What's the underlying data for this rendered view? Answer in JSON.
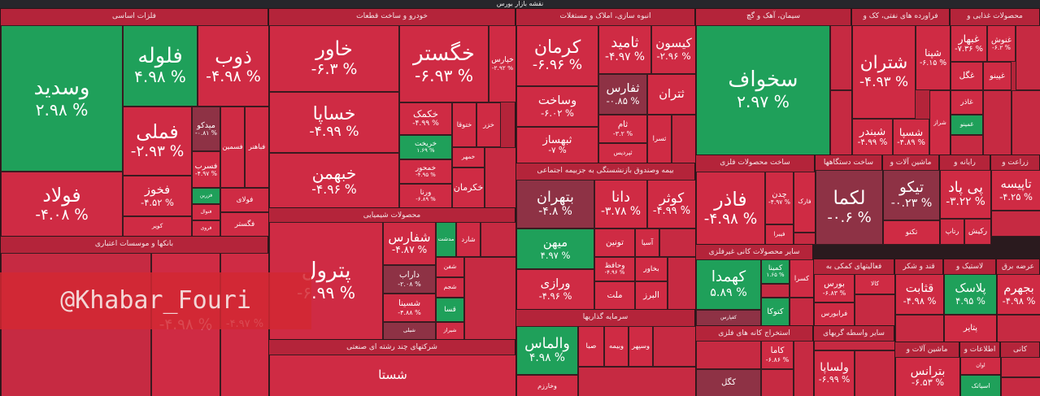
{
  "header": {
    "title": "نقشه بازار بورس"
  },
  "watermark": "@Khabar_Fouri",
  "sectors": [
    {
      "name": "فلزات اساسی",
      "tiles": [
        {
          "name": "وسدید",
          "change": "۲.۹۸ %",
          "color": "#1fa05a"
        },
        {
          "name": "فولاد",
          "change": "-۴.۰۸ %",
          "color": "#cf2b44"
        },
        {
          "name": "فلوله",
          "change": "۴.۹۸ %",
          "color": "#1fa05a"
        },
        {
          "name": "ذوب",
          "change": "-۴.۹۸ %",
          "color": "#cf2b44"
        },
        {
          "name": "فملی",
          "change": "-۲.۹۳ %",
          "color": "#cf2b44"
        },
        {
          "name": "فخوز",
          "change": "-۴.۵۲ %",
          "color": "#cf2b44"
        },
        {
          "name": "کویر",
          "color": "#cf2b44"
        },
        {
          "name": "میدکو",
          "change": "-۰.۸۱ %",
          "color": "#8e3245"
        },
        {
          "name": "فسرب",
          "change": "-۴.۹۷ %",
          "color": "#cf2b44"
        },
        {
          "name": "فزرین",
          "color": "#1fa05a"
        },
        {
          "name": "فنوال",
          "color": "#cf2b44"
        },
        {
          "name": "فروی",
          "color": "#cf2b44"
        },
        {
          "name": "فسمین",
          "color": "#cf2b44"
        },
        {
          "name": "فباهنر",
          "color": "#cf2b44"
        },
        {
          "name": "فولای",
          "color": "#cf2b44"
        },
        {
          "name": "فگستر",
          "color": "#cf2b44"
        }
      ]
    },
    {
      "name": "بانکها و موسسات اعتباری",
      "tiles": [
        {
          "change": "-۴.۹۸ %",
          "color": "#cf2b44"
        },
        {
          "change": "-۴.۹۷ %",
          "color": "#cf2b44"
        }
      ]
    },
    {
      "name": "خودرو و ساخت قطعات",
      "tiles": [
        {
          "name": "خاور",
          "change": "-۶.۳ %",
          "color": "#cf2b44"
        },
        {
          "name": "خساپا",
          "change": "-۴.۹۹ %",
          "color": "#cf2b44"
        },
        {
          "name": "خبهمن",
          "change": "-۴.۹۶ %",
          "color": "#cf2b44"
        },
        {
          "name": "خگستر",
          "change": "-۶.۹۳ %",
          "color": "#cf2b44"
        },
        {
          "name": "خپارس",
          "change": "-۲.۹۲ %",
          "color": "#cf2b44"
        },
        {
          "name": "خکمک",
          "change": "-۴.۹۹ %",
          "color": "#cf2b44"
        },
        {
          "name": "خریخت",
          "change": "۱.۶۹ %",
          "color": "#1fa05a"
        },
        {
          "name": "خمحور",
          "change": "-۴.۹۵ %",
          "color": "#cf2b44"
        },
        {
          "name": "ورنا",
          "change": "-۶.۸۹ %",
          "color": "#cf2b44"
        },
        {
          "name": "ختوقا",
          "color": "#cf2b44"
        },
        {
          "name": "خزر",
          "color": "#cf2b44"
        },
        {
          "name": "خمهر",
          "color": "#cf2b44"
        },
        {
          "name": "خکرمان",
          "color": "#cf2b44"
        }
      ]
    },
    {
      "name": "محصولات شیمیایی",
      "tiles": [
        {
          "name": "پترول",
          "change": "-۶.۹۹ %",
          "color": "#cf2b44"
        },
        {
          "name": "شفارس",
          "change": "-۴.۸۷ %",
          "color": "#cf2b44"
        },
        {
          "name": "مدشت",
          "color": "#1fa05a"
        },
        {
          "name": "شارد",
          "color": "#cf2b44"
        },
        {
          "name": "داراب",
          "change": "-۲.۰۸ %",
          "color": "#8e3245"
        },
        {
          "name": "شسینا",
          "change": "-۴.۸۸ %",
          "color": "#cf2b44"
        },
        {
          "name": "شیلی",
          "color": "#8e3245"
        },
        {
          "name": "شفن",
          "color": "#cf2b44"
        },
        {
          "name": "شجم",
          "color": "#cf2b44"
        },
        {
          "name": "قسا",
          "color": "#1fa05a"
        },
        {
          "name": "شیراز",
          "color": "#cf2b44"
        }
      ]
    },
    {
      "name": "شرکتهای چند رشته ای صنعتی",
      "tiles": [
        {
          "name": "شستا",
          "color": "#cf2b44"
        }
      ]
    },
    {
      "name": "انبوه سازی، املاک و مستغلات",
      "tiles": [
        {
          "name": "کرمان",
          "change": "-۶.۹۶ %",
          "color": "#cf2b44"
        },
        {
          "name": "وساخت",
          "change": "-۶.۰۲ %",
          "color": "#cf2b44"
        },
        {
          "name": "ثبهساز",
          "change": "-۷ %",
          "color": "#cf2b44"
        },
        {
          "name": "ثامید",
          "change": "-۴.۹۷ %",
          "color": "#cf2b44"
        },
        {
          "name": "کیسون",
          "change": "-۲.۹۶ %",
          "color": "#cf2b44"
        },
        {
          "name": "ثفارس",
          "change": "-۰.۸۵ %",
          "color": "#8e3245"
        },
        {
          "name": "ثتران",
          "color": "#cf2b44"
        },
        {
          "name": "ثام",
          "change": "-۳.۲ %",
          "color": "#cf2b44"
        },
        {
          "name": "ثپردیس",
          "color": "#cf2b44"
        },
        {
          "name": "ثسرا",
          "color": "#cf2b44"
        }
      ]
    },
    {
      "name": "بیمه وصندوق بازنشستگی به جزبیمه اجتماعی",
      "tiles": [
        {
          "name": "بتهران",
          "change": "-۴.۸ %",
          "color": "#8e3245"
        },
        {
          "name": "دانا",
          "change": "-۳.۷۸ %",
          "color": "#cf2b44"
        },
        {
          "name": "کوثر",
          "change": "-۴.۹۹ %",
          "color": "#cf2b44"
        },
        {
          "name": "میهن",
          "change": "۴.۹۷ %",
          "color": "#1fa05a"
        },
        {
          "name": "ورازی",
          "change": "-۴.۹۶ %",
          "color": "#cf2b44"
        },
        {
          "name": "تونین",
          "color": "#cf2b44"
        },
        {
          "name": "آسیا",
          "color": "#cf2b44"
        },
        {
          "name": "وحافظ",
          "change": "-۴.۹۶ %",
          "color": "#cf2b44"
        },
        {
          "name": "ملت",
          "color": "#cf2b44"
        },
        {
          "name": "البرز",
          "color": "#cf2b44"
        },
        {
          "name": "بخاور",
          "color": "#cf2b44"
        }
      ]
    },
    {
      "name": "سرمایه گذاریها",
      "tiles": [
        {
          "name": "والماس",
          "change": "۴.۹۸ %",
          "color": "#1fa05a"
        },
        {
          "name": "وخارزم",
          "color": "#cf2b44"
        },
        {
          "name": "صبا",
          "color": "#cf2b44"
        },
        {
          "name": "وبیمه",
          "color": "#cf2b44"
        },
        {
          "name": "وسپهر",
          "color": "#cf2b44"
        }
      ]
    },
    {
      "name": "سیمان، آهک و گچ",
      "tiles": [
        {
          "name": "سخواف",
          "change": "۲.۹۷ %",
          "color": "#1fa05a"
        }
      ]
    },
    {
      "name": "ساخت محصولات فلزی",
      "tiles": [
        {
          "name": "فاذر",
          "change": "-۴.۹۸ %",
          "color": "#cf2b44"
        },
        {
          "name": "چدن",
          "change": "-۴.۹۷ %",
          "color": "#cf2b44"
        },
        {
          "name": "فارک",
          "color": "#cf2b44"
        },
        {
          "name": "فیبرا",
          "color": "#cf2b44"
        }
      ]
    },
    {
      "name": "ساخت دستگاهها",
      "tiles": [
        {
          "name": "لکما",
          "change": "-۰.۶ %",
          "color": "#8e3245"
        }
      ]
    },
    {
      "name": "ماشین آلات و",
      "tiles": [
        {
          "name": "تیکو",
          "change": "-۰.۲۳ %",
          "color": "#8e3245"
        },
        {
          "name": "تکنو",
          "color": "#cf2b44"
        }
      ]
    },
    {
      "name": "سایر محصولات کانی غیرفلزی",
      "tiles": [
        {
          "name": "کهمدا",
          "change": "۵.۸۹ %",
          "color": "#1fa05a"
        },
        {
          "name": "کفپارس",
          "color": "#8e3245"
        },
        {
          "name": "کمینا",
          "change": "۱.۶۵ %",
          "color": "#1fa05a"
        },
        {
          "name": "کسرا",
          "color": "#cf2b44"
        },
        {
          "name": "کتوکا",
          "color": "#1fa05a"
        }
      ]
    },
    {
      "name": "استخراج کانه های فلزی",
      "tiles": [
        {
          "name": "کاما",
          "change": "-۶.۸۶ %",
          "color": "#cf2b44"
        },
        {
          "name": "کگل",
          "color": "#8e3245"
        }
      ]
    },
    {
      "name": "فعالیتهای کمکی به",
      "tiles": [
        {
          "name": "بورس",
          "change": "-۶.۸۳ %",
          "color": "#cf2b44"
        },
        {
          "name": "فرابورس",
          "color": "#cf2b44"
        },
        {
          "name": "کالا",
          "color": "#cf2b44"
        }
      ]
    },
    {
      "name": "سایر واسطه گریهای",
      "tiles": [
        {
          "name": "ولساپا",
          "change": "-۶.۹۹ %",
          "color": "#cf2b44"
        }
      ]
    },
    {
      "name": "فراورده های نفتی، کک و",
      "tiles": [
        {
          "name": "شتران",
          "change": "-۴.۹۳ %",
          "color": "#cf2b44"
        },
        {
          "name": "شپنا",
          "change": "-۶.۱۵ %",
          "color": "#cf2b44"
        },
        {
          "name": "شبندر",
          "change": "-۴.۹۹ %",
          "color": "#cf2b44"
        },
        {
          "name": "شسپا",
          "change": "-۴.۸۹ %",
          "color": "#cf2b44"
        },
        {
          "name": "شراز",
          "color": "#cf2b44"
        }
      ]
    },
    {
      "name": "محصولات غذایی و",
      "tiles": [
        {
          "name": "غبهار",
          "change": "-۷.۳۶ %",
          "color": "#cf2b44"
        },
        {
          "name": "غنوش",
          "change": "-۶.۲ %",
          "color": "#cf2b44"
        },
        {
          "name": "غگل",
          "color": "#cf2b44"
        },
        {
          "name": "غپینو",
          "color": "#cf2b44"
        },
        {
          "name": "غاذر",
          "color": "#cf2b44"
        },
        {
          "name": "غمینو",
          "color": "#1fa05a"
        }
      ]
    },
    {
      "name": "رایانه و",
      "tiles": [
        {
          "name": "پی پاد",
          "change": "-۳.۲۲ %",
          "color": "#cf2b44"
        },
        {
          "name": "رتاپ",
          "color": "#cf2b44"
        },
        {
          "name": "رکیش",
          "color": "#cf2b44"
        }
      ]
    },
    {
      "name": "زراعت و",
      "tiles": [
        {
          "name": "تاپیسه",
          "change": "-۴.۲۵ %",
          "color": "#cf2b44"
        }
      ]
    },
    {
      "name": "قند و شکر",
      "tiles": [
        {
          "name": "قثابت",
          "change": "-۴.۹۸ %",
          "color": "#cf2b44"
        }
      ]
    },
    {
      "name": "لاستیک و",
      "tiles": [
        {
          "name": "پلاسک",
          "change": "۴.۹۵ %",
          "color": "#1fa05a"
        },
        {
          "name": "پتایر",
          "color": "#cf2b44"
        }
      ]
    },
    {
      "name": "عرضه برق",
      "tiles": [
        {
          "name": "بجهرم",
          "change": "-۴.۹۸ %",
          "color": "#cf2b44"
        }
      ]
    },
    {
      "name": "ماشین آلات و",
      "tiles": [
        {
          "name": "بترانس",
          "change": "-۶.۵۳ %",
          "color": "#cf2b44"
        }
      ]
    },
    {
      "name": "اطلاعات و",
      "tiles": [
        {
          "name": "اوان",
          "color": "#cf2b44"
        },
        {
          "name": "اسیاتک",
          "color": "#1fa05a"
        }
      ]
    },
    {
      "name": "کانی",
      "tiles": []
    }
  ]
}
